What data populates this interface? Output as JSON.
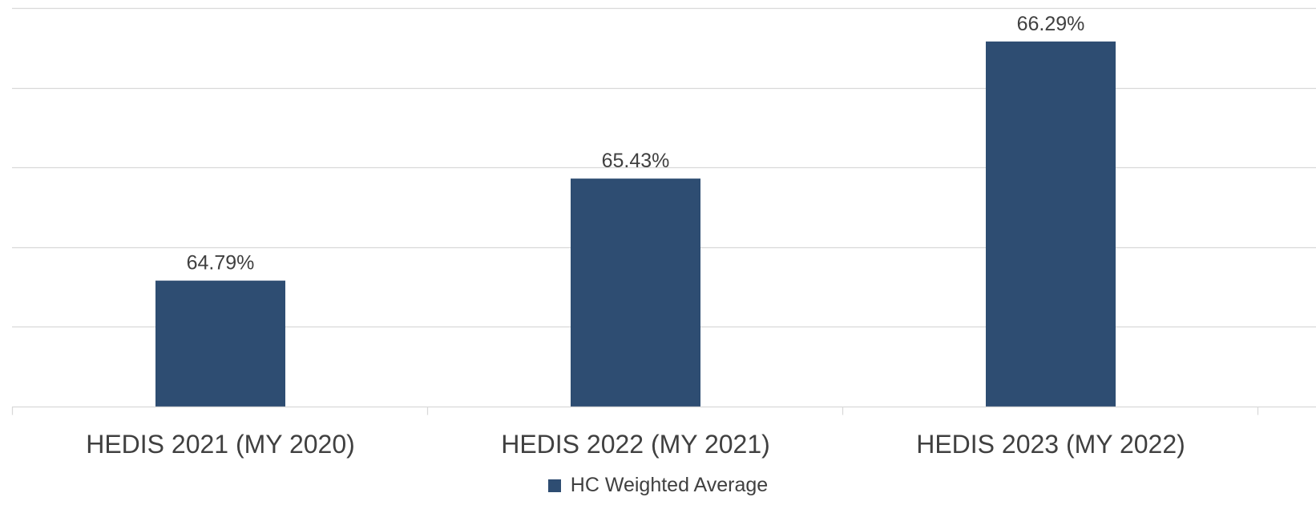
{
  "chart_data": {
    "type": "bar",
    "categories": [
      "HEDIS 2021 (MY 2020)",
      "HEDIS 2022 (MY 2021)",
      "HEDIS 2023 (MY 2022)"
    ],
    "series": [
      {
        "name": "HC Weighted Average",
        "values": [
          64.79,
          65.43,
          66.29
        ],
        "data_labels": [
          "64.79%",
          "65.43%",
          "66.29%"
        ],
        "color": "#2e4d72"
      }
    ],
    "ylim": [
      64.0,
      66.5
    ],
    "y_gridlines": [
      64.0,
      64.5,
      65.0,
      65.5,
      66.0,
      66.5
    ],
    "grid": true,
    "y_tick_labels_shown": false,
    "legend_position": "bottom"
  }
}
